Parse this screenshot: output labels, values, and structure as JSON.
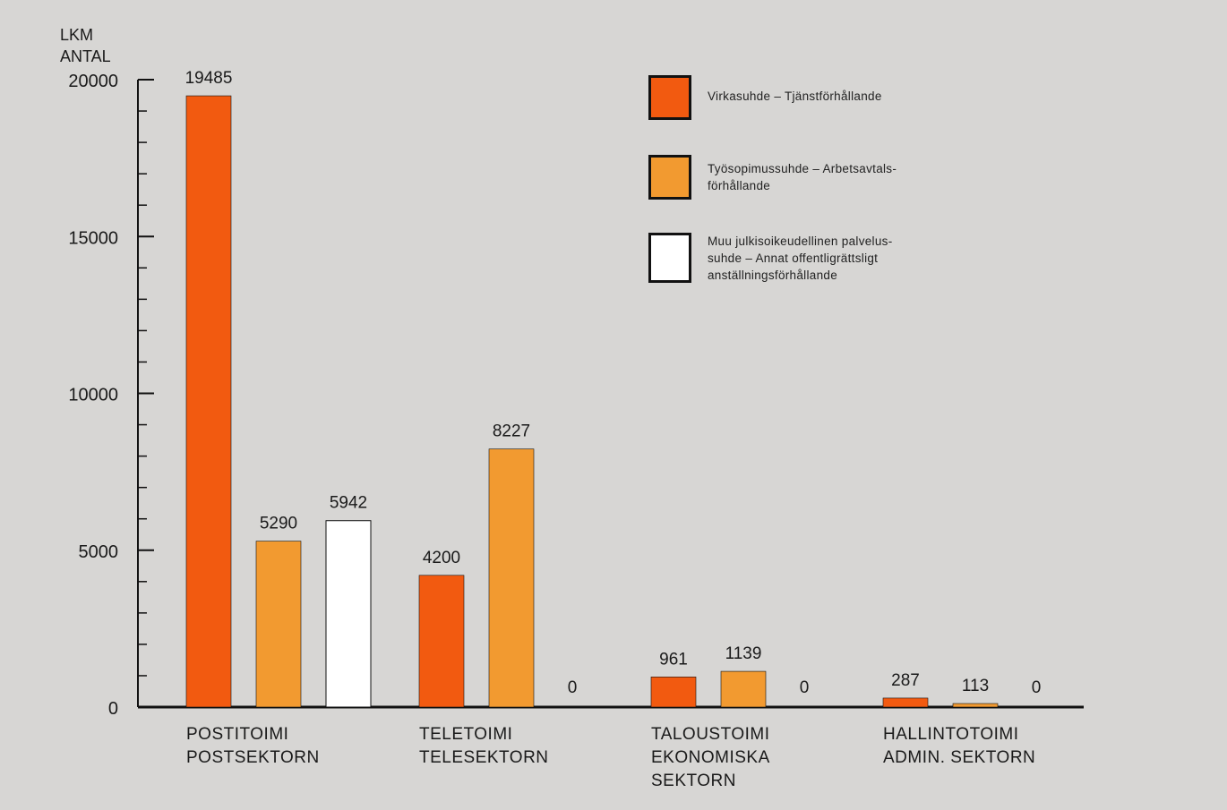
{
  "chart_data": {
    "type": "bar",
    "ylabel": [
      "LKM",
      "ANTAL"
    ],
    "ylim": [
      0,
      20000
    ],
    "yticks": [
      0,
      5000,
      10000,
      15000,
      20000
    ],
    "categories": [
      [
        "POSTITOIMI",
        "POSTSEKTORN"
      ],
      [
        "TELETOIMI",
        "TELESEKTORN"
      ],
      [
        "TALOUSTOIMI",
        "EKONOMISKA",
        "SEKTORN"
      ],
      [
        "HALLINTOTOIMI",
        "ADMIN. SEKTORN"
      ]
    ],
    "series": [
      {
        "name": "Virkasuhde – Tjänstförhållande",
        "color": "#f25a10",
        "values": [
          19485,
          4200,
          961,
          287
        ]
      },
      {
        "name": "Työsopimussuhde – Arbetsavtals-förhållande",
        "color": "#f29a30",
        "values": [
          5290,
          8227,
          1139,
          113
        ]
      },
      {
        "name": "Muu julkisoikeudellinen palvelussuhde – Annat offentligrättsligt anställningsförhållande",
        "color": "#ffffff",
        "values": [
          5942,
          0,
          0,
          0
        ]
      }
    ],
    "data_labels": [
      [
        "19485",
        "4200",
        "961",
        "287"
      ],
      [
        "5290",
        "8227",
        "1139",
        "113"
      ],
      [
        "5942",
        "0",
        "0",
        "0"
      ]
    ],
    "grid": false,
    "legend_position": "top-right"
  },
  "legend": {
    "items": [
      {
        "lines": [
          "Virkasuhde – Tjänstförhållande"
        ],
        "color": "#f25a10"
      },
      {
        "lines": [
          "Työsopimussuhde – Arbetsavtals-",
          "förhållande"
        ],
        "color": "#f29a30"
      },
      {
        "lines": [
          "Muu julkisoikeudellinen palvelus-",
          "suhde – Annat offentligrättsligt",
          "anställningsförhållande"
        ],
        "color": "#ffffff"
      }
    ]
  }
}
